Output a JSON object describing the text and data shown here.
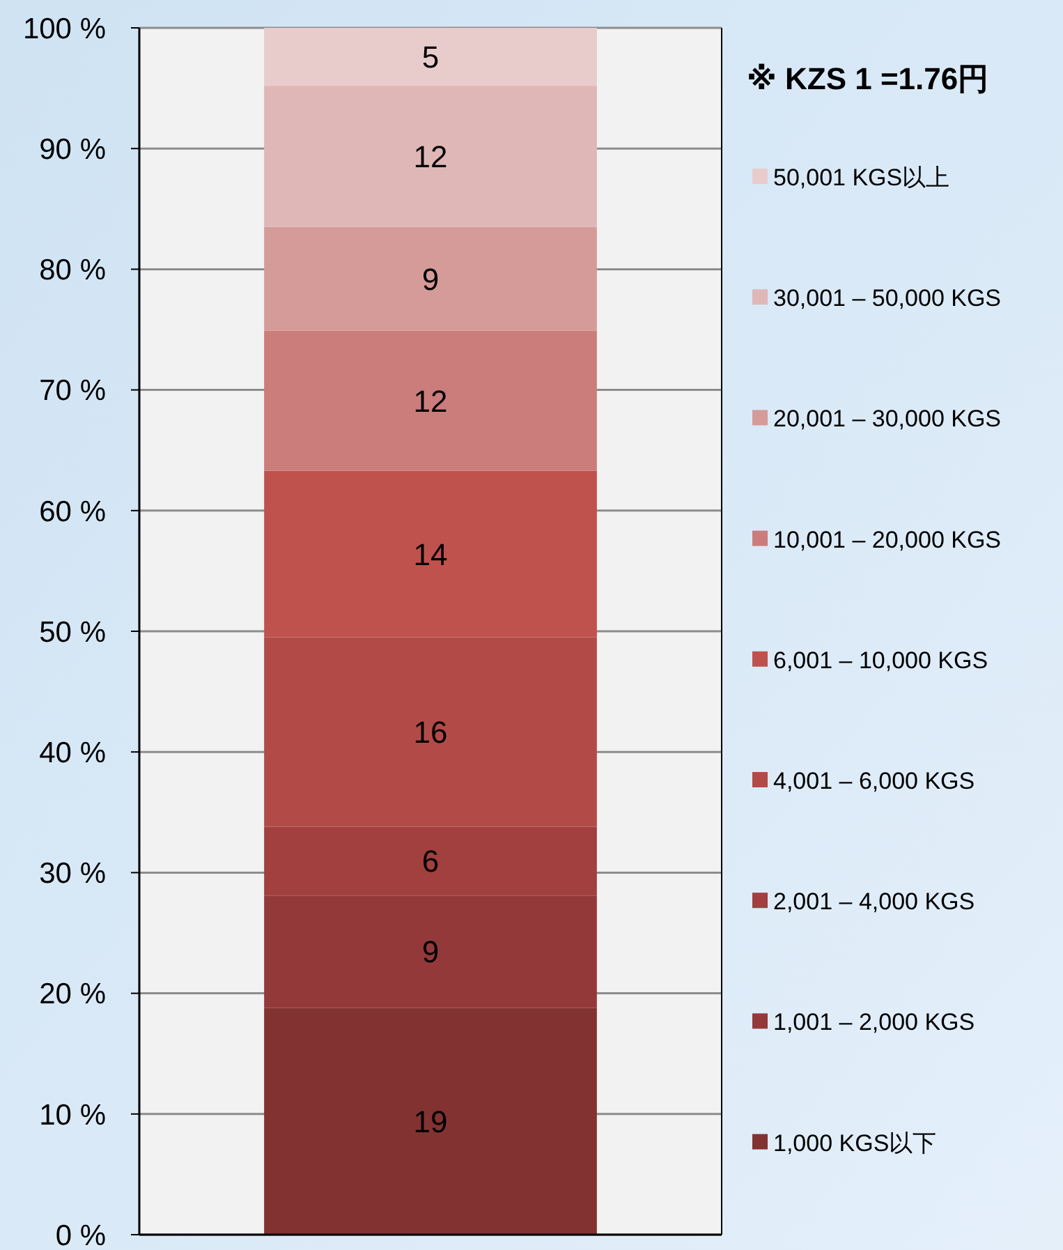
{
  "chart_data": {
    "type": "bar",
    "stacked": true,
    "categories": [
      null
    ],
    "ylim": [
      0,
      100
    ],
    "yticks": [
      {
        "value": 0,
        "label": "0 %"
      },
      {
        "value": 10,
        "label": "10 %"
      },
      {
        "value": 20,
        "label": "20 %"
      },
      {
        "value": 30,
        "label": "30 %"
      },
      {
        "value": 40,
        "label": "40 %"
      },
      {
        "value": 50,
        "label": "50 %"
      },
      {
        "value": 60,
        "label": "60 %"
      },
      {
        "value": 70,
        "label": "70 %"
      },
      {
        "value": 80,
        "label": "80 %"
      },
      {
        "value": 90,
        "label": "90 %"
      },
      {
        "value": 100,
        "label": "100 %"
      }
    ],
    "grid": "y",
    "legend": "right",
    "tick_labels": "y",
    "annotations": [
      "※ KZS 1 =1.76円"
    ],
    "series": [
      {
        "name": "1,000 KGS以下",
        "color": "#833232",
        "values": [
          18.8
        ],
        "value_labels": [
          "19"
        ]
      },
      {
        "name": "1,001 – 2,000 KGS",
        "color": "#94393a",
        "values": [
          9.3
        ],
        "value_labels": [
          "9"
        ]
      },
      {
        "name": "2,001 – 4,000 KGS",
        "color": "#a1403e",
        "values": [
          5.7
        ],
        "value_labels": [
          "6"
        ]
      },
      {
        "name": "4,001 – 6,000 KGS",
        "color": "#b24b47",
        "values": [
          15.7
        ],
        "value_labels": [
          "16"
        ]
      },
      {
        "name": "6,001 – 10,000 KGS",
        "color": "#c0524d",
        "values": [
          13.8
        ],
        "value_labels": [
          "14"
        ]
      },
      {
        "name": "10,001 – 20,000 KGS",
        "color": "#cb7d7b",
        "values": [
          11.6
        ],
        "value_labels": [
          "12"
        ]
      },
      {
        "name": "20,001 – 30,000 KGS",
        "color": "#d59b99",
        "values": [
          8.6
        ],
        "value_labels": [
          "9"
        ]
      },
      {
        "name": "30,001 – 50,000 KGS",
        "color": "#dfb7b6",
        "values": [
          11.7
        ],
        "value_labels": [
          "12"
        ]
      },
      {
        "name": "50,001 KGS以上",
        "color": "#e8cccc",
        "values": [
          4.8
        ],
        "value_labels": [
          "5"
        ]
      }
    ]
  }
}
